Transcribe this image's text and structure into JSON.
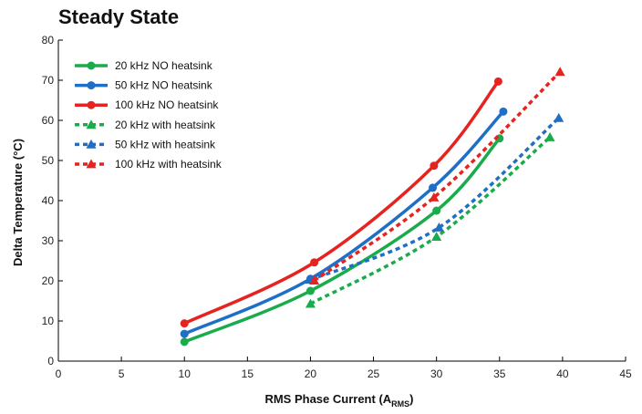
{
  "chart_data": {
    "type": "line",
    "title": "Steady State",
    "xlabel": "RMS Phase Current (A",
    "xlabel_sub": "RMS",
    "xlabel_end": ")",
    "ylabel": "Delta Temperature (°C)",
    "xlim": [
      0,
      45
    ],
    "ylim": [
      0,
      80
    ],
    "xticks": [
      0,
      5,
      10,
      15,
      20,
      25,
      30,
      35,
      40,
      45
    ],
    "yticks": [
      0,
      10,
      20,
      30,
      40,
      50,
      60,
      70,
      80
    ],
    "grid": false,
    "legend_position": "top-left",
    "series": [
      {
        "name": "20 kHz NO heatsink",
        "color": "#1aab4b",
        "style": "solid",
        "marker": "circle",
        "x": [
          10,
          20,
          30,
          35
        ],
        "y": [
          4.8,
          17.5,
          37.5,
          55.5
        ]
      },
      {
        "name": "50 kHz NO heatsink",
        "color": "#1f6fc6",
        "style": "solid",
        "marker": "circle",
        "x": [
          10,
          20,
          29.7,
          35.3
        ],
        "y": [
          6.8,
          20.5,
          43.2,
          62.2
        ]
      },
      {
        "name": "100 kHz NO heatsink",
        "color": "#e52421",
        "style": "solid",
        "marker": "circle",
        "x": [
          10,
          20.3,
          29.8,
          34.9
        ],
        "y": [
          9.4,
          24.6,
          48.7,
          69.7
        ]
      },
      {
        "name": "20 kHz with heatsink",
        "color": "#1aab4b",
        "style": "dashed",
        "marker": "triangle",
        "x": [
          20,
          30,
          39
        ],
        "y": [
          14.3,
          31,
          55.8
        ]
      },
      {
        "name": "50 kHz with heatsink",
        "color": "#1f6fc6",
        "style": "dashed",
        "marker": "triangle",
        "x": [
          20,
          30.2,
          39.7
        ],
        "y": [
          20.3,
          33.3,
          60.6
        ]
      },
      {
        "name": "100 kHz with heatsink",
        "color": "#e52421",
        "style": "dashed",
        "marker": "triangle",
        "x": [
          20.3,
          29.8,
          39.8
        ],
        "y": [
          20.1,
          40.8,
          72.1
        ]
      }
    ]
  }
}
